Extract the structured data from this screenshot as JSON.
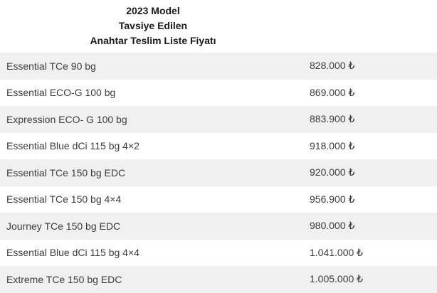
{
  "header": {
    "line1": "2023 Model",
    "line2": "Tavsiye Edilen",
    "line3": "Anahtar Teslim Liste Fiyatı"
  },
  "table": {
    "currency_symbol": "₺",
    "rows": [
      {
        "model": "Essential TCe 90 bg",
        "price": "828.000 ₺"
      },
      {
        "model": "Essential ECO-G 100 bg",
        "price": "869.000 ₺"
      },
      {
        "model": "Expression ECO- G 100 bg",
        "price": "883.900 ₺"
      },
      {
        "model": "Essential Blue dCi 115 bg 4×2",
        "price": "918.000 ₺"
      },
      {
        "model": "Essential TCe 150 bg EDC",
        "price": "920.000 ₺"
      },
      {
        "model": "Essential TCe 150 bg 4×4",
        "price": "956.900 ₺"
      },
      {
        "model": "Journey TCe 150 bg EDC",
        "price": "980.000 ₺"
      },
      {
        "model": "Essential Blue dCi 115 bg 4×4",
        "price": "1.041.000 ₺"
      },
      {
        "model": "Extreme TCe 150 bg EDC",
        "price": "1.005.000 ₺"
      }
    ]
  },
  "colors": {
    "row_alt_background": "#f0f0f0",
    "row_background": "#ffffff",
    "row_text": "#3c3c3c",
    "header_text": "#1a1a1a"
  }
}
